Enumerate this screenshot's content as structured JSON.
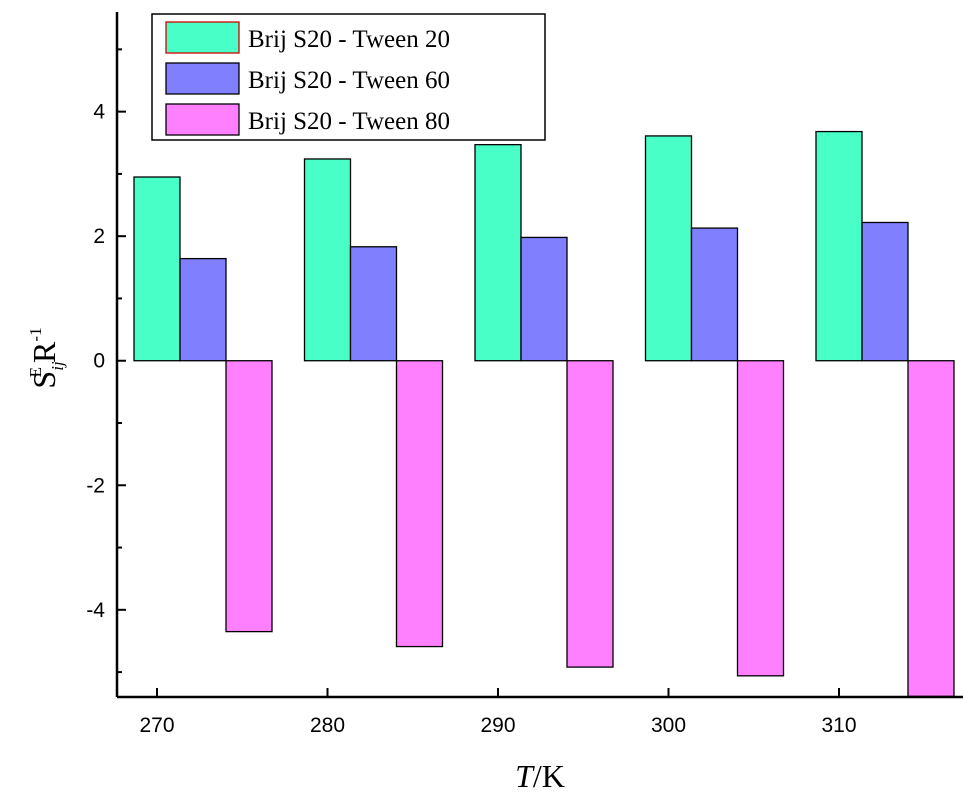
{
  "chart_data": {
    "type": "bar",
    "title": "",
    "categories": [
      "270",
      "280",
      "290",
      "300",
      "310"
    ],
    "series": [
      {
        "name": "Brij S20 - Tween 20",
        "color": "#48FFC8",
        "values": [
          2.95,
          3.24,
          3.47,
          3.61,
          3.68
        ]
      },
      {
        "name": "Brij S20 - Tween 60",
        "color": "#8080FF",
        "values": [
          1.64,
          1.83,
          1.98,
          2.13,
          2.22
        ]
      },
      {
        "name": "Brij S20 - Tween 80",
        "color": "#FF80FF",
        "values": [
          -4.35,
          -4.59,
          -4.92,
          -5.06,
          -5.39
        ]
      }
    ],
    "xlabel_italic": "T",
    "xlabel_unit": "/K",
    "ylabel": "S_ij^E R^-1",
    "ylabel_main": "S",
    "ylabel_sup": "E",
    "ylabel_sub": "ij",
    "ylabel_r": "R",
    "ylabel_rsup": "-1",
    "ylim": [
      -5.4,
      5.6
    ],
    "yticks": [
      "-4",
      "-2",
      "0",
      "2",
      "4"
    ],
    "xticks": [
      "270",
      "280",
      "290",
      "300",
      "310"
    ],
    "grid": false,
    "legend_position": "top-left"
  }
}
